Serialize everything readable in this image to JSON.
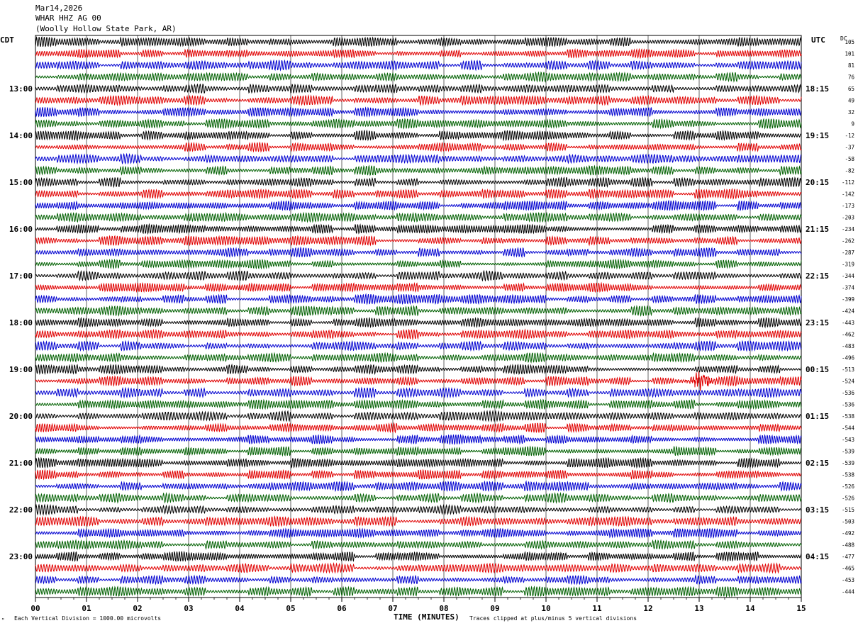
{
  "header": {
    "date": "Mar14,2026",
    "station": "WHAR HHZ AG 00",
    "location": "(Woolly Hollow State Park, AR)"
  },
  "labels": {
    "left_zone": "CDT",
    "right_zone": "UTC",
    "dc": "DC",
    "xaxis_title": "TIME (MINUTES)",
    "scale_note": "Each Vertical Division = 1000.00 microvolts",
    "clip_note": "Traces clipped at plus/minus 5 vertical divisions",
    "corner_mark": "ᴹ"
  },
  "colors": {
    "trace_cycle": [
      "#000000",
      "#e00000",
      "#0000d0",
      "#006000"
    ],
    "grid": "#000000"
  },
  "chart_data": {
    "type": "line",
    "title": "",
    "xlabel": "TIME (MINUTES)",
    "x_ticks": [
      "00",
      "01",
      "02",
      "03",
      "04",
      "05",
      "06",
      "07",
      "08",
      "09",
      "10",
      "11",
      "12",
      "13",
      "14",
      "15"
    ],
    "xlim": [
      0,
      15
    ],
    "rows_per_hour": 4,
    "minutes_per_row": 15,
    "left_hour_labels": [
      "13:00",
      "14:00",
      "15:00",
      "16:00",
      "17:00",
      "18:00",
      "19:00",
      "20:00",
      "21:00",
      "22:00",
      "23:00"
    ],
    "right_hour_labels": [
      "18:15",
      "19:15",
      "20:15",
      "21:15",
      "22:15",
      "23:15",
      "00:15",
      "01:15",
      "02:15",
      "03:15",
      "04:15"
    ],
    "dc_offsets": [
      105,
      101,
      81,
      76,
      65,
      49,
      32,
      9,
      -12,
      -37,
      -58,
      -82,
      -112,
      -142,
      -173,
      -203,
      -234,
      -262,
      -287,
      -319,
      -344,
      -374,
      -399,
      -424,
      -443,
      -462,
      -483,
      -496,
      -513,
      -524,
      -536,
      -536,
      -538,
      -544,
      -543,
      -539,
      -539,
      -538,
      -526,
      -526,
      -515,
      -503,
      -492,
      -488,
      -477,
      -465,
      -453,
      -444
    ],
    "events": [
      {
        "row": 29,
        "minute": 13.05,
        "note": "local spike"
      }
    ]
  }
}
